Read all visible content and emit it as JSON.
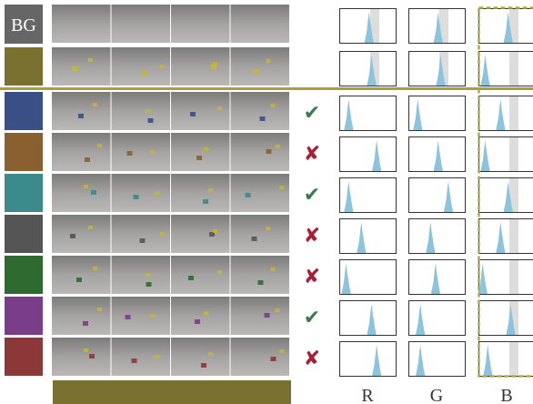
{
  "background_label": "BG",
  "rows": [
    {
      "color": "#3a4f86",
      "mark": "✔"
    },
    {
      "color": "#8a6030",
      "mark": "✘"
    },
    {
      "color": "#3a8a8c",
      "mark": "✔"
    },
    {
      "color": "#555555",
      "mark": "✘"
    },
    {
      "color": "#2f6a30",
      "mark": "✘"
    },
    {
      "color": "#7a3d8a",
      "mark": "✔"
    },
    {
      "color": "#8c3838",
      "mark": "✘"
    }
  ],
  "channels": [
    "R",
    "G",
    "B"
  ]
}
